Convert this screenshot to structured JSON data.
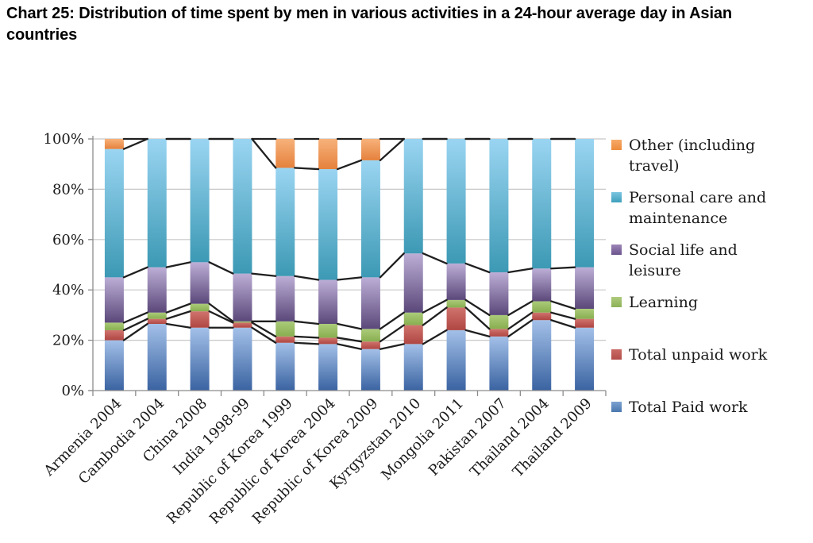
{
  "title": "Chart 25: Distribution of time spent by men in various activities in a 24-hour average day in Asian countries",
  "chart_data": {
    "type": "bar",
    "subtype": "percent-stacked-columns-with-series-lines",
    "title": "Chart 25: Distribution of time spent by men in various activities in a 24-hour average day in Asian countries",
    "xlabel": "",
    "ylabel": "",
    "ylim": [
      0,
      100
    ],
    "yticks": [
      "0%",
      "20%",
      "40%",
      "60%",
      "80%",
      "100%"
    ],
    "grid": true,
    "legend_position": "right",
    "gridline_color": "#c8c8c8",
    "axis_color": "#8c8c8c",
    "series_line_color": "#1f1f1f",
    "categories": [
      "Armenia 2004",
      "Cambodia 2004",
      "China 2008",
      "India 1998-99",
      "Republic of Korea 1999",
      "Republic of Korea 2004",
      "Republic of Korea 2009",
      "Kyrgyzstan 2010",
      "Mongolia 2011",
      "Pakistan 2007",
      "Thailand 2004",
      "Thailand 2009"
    ],
    "series": [
      {
        "name": "Total Paid work",
        "color_top": "#a3c0e8",
        "color_bottom": "#3a63a1",
        "key_color": "#4f81bd",
        "values": [
          20,
          26.5,
          25,
          25,
          19,
          18.5,
          16.5,
          18.5,
          24,
          21.5,
          28,
          25
        ]
      },
      {
        "name": "Total unpaid work",
        "color_top": "#d0736e",
        "color_bottom": "#af4642",
        "key_color": "#c0504d",
        "values": [
          4,
          2,
          6.5,
          2,
          2.5,
          2.5,
          3,
          7.5,
          9,
          3,
          3,
          3.5
        ]
      },
      {
        "name": "Learning",
        "color_top": "#abcb79",
        "color_bottom": "#88ae50",
        "key_color": "#9bbb59",
        "values": [
          3,
          2.5,
          3,
          0.5,
          6,
          5.5,
          5,
          5,
          3,
          5.5,
          4.5,
          4
        ]
      },
      {
        "name": "Social life and leisure",
        "color_top": "#bcaed6",
        "color_bottom": "#5b487a",
        "key_color": "#8064a2",
        "values": [
          18,
          18,
          16.5,
          19,
          18,
          17.5,
          20.5,
          23.5,
          14.5,
          17,
          13,
          16.5
        ]
      },
      {
        "name": "Personal care and maintenance",
        "color_top": "#9ad5f2",
        "color_bottom": "#3c99b4",
        "key_color": "#4bacc6",
        "values": [
          51,
          51,
          49,
          53.5,
          43,
          44,
          46.5,
          45.5,
          49.5,
          53,
          51.5,
          51
        ]
      },
      {
        "name": "Other (including travel)",
        "color_top": "#f7b27a",
        "color_bottom": "#e5813d",
        "key_color": "#f79646",
        "values": [
          4,
          0,
          0,
          0,
          11.5,
          12,
          8.5,
          0,
          0,
          0,
          0,
          0
        ]
      }
    ]
  },
  "legend": {
    "items": [
      {
        "label": "Other (including travel)",
        "color_top": "#f7a968",
        "color_bottom": "#ed8c3c"
      },
      {
        "label": "Personal care and maintenance",
        "color_top": "#7cc5e0",
        "color_bottom": "#3e9fbc"
      },
      {
        "label": "Social life and leisure",
        "color_top": "#9d86b8",
        "color_bottom": "#6a538c"
      },
      {
        "label": "Learning",
        "color_top": "#aecb7d",
        "color_bottom": "#8cb157"
      },
      {
        "label": "Total unpaid work",
        "color_top": "#cb6a65",
        "color_bottom": "#b24d49"
      },
      {
        "label": "Total Paid work",
        "color_top": "#7da2d0",
        "color_bottom": "#4a77ae"
      }
    ]
  }
}
